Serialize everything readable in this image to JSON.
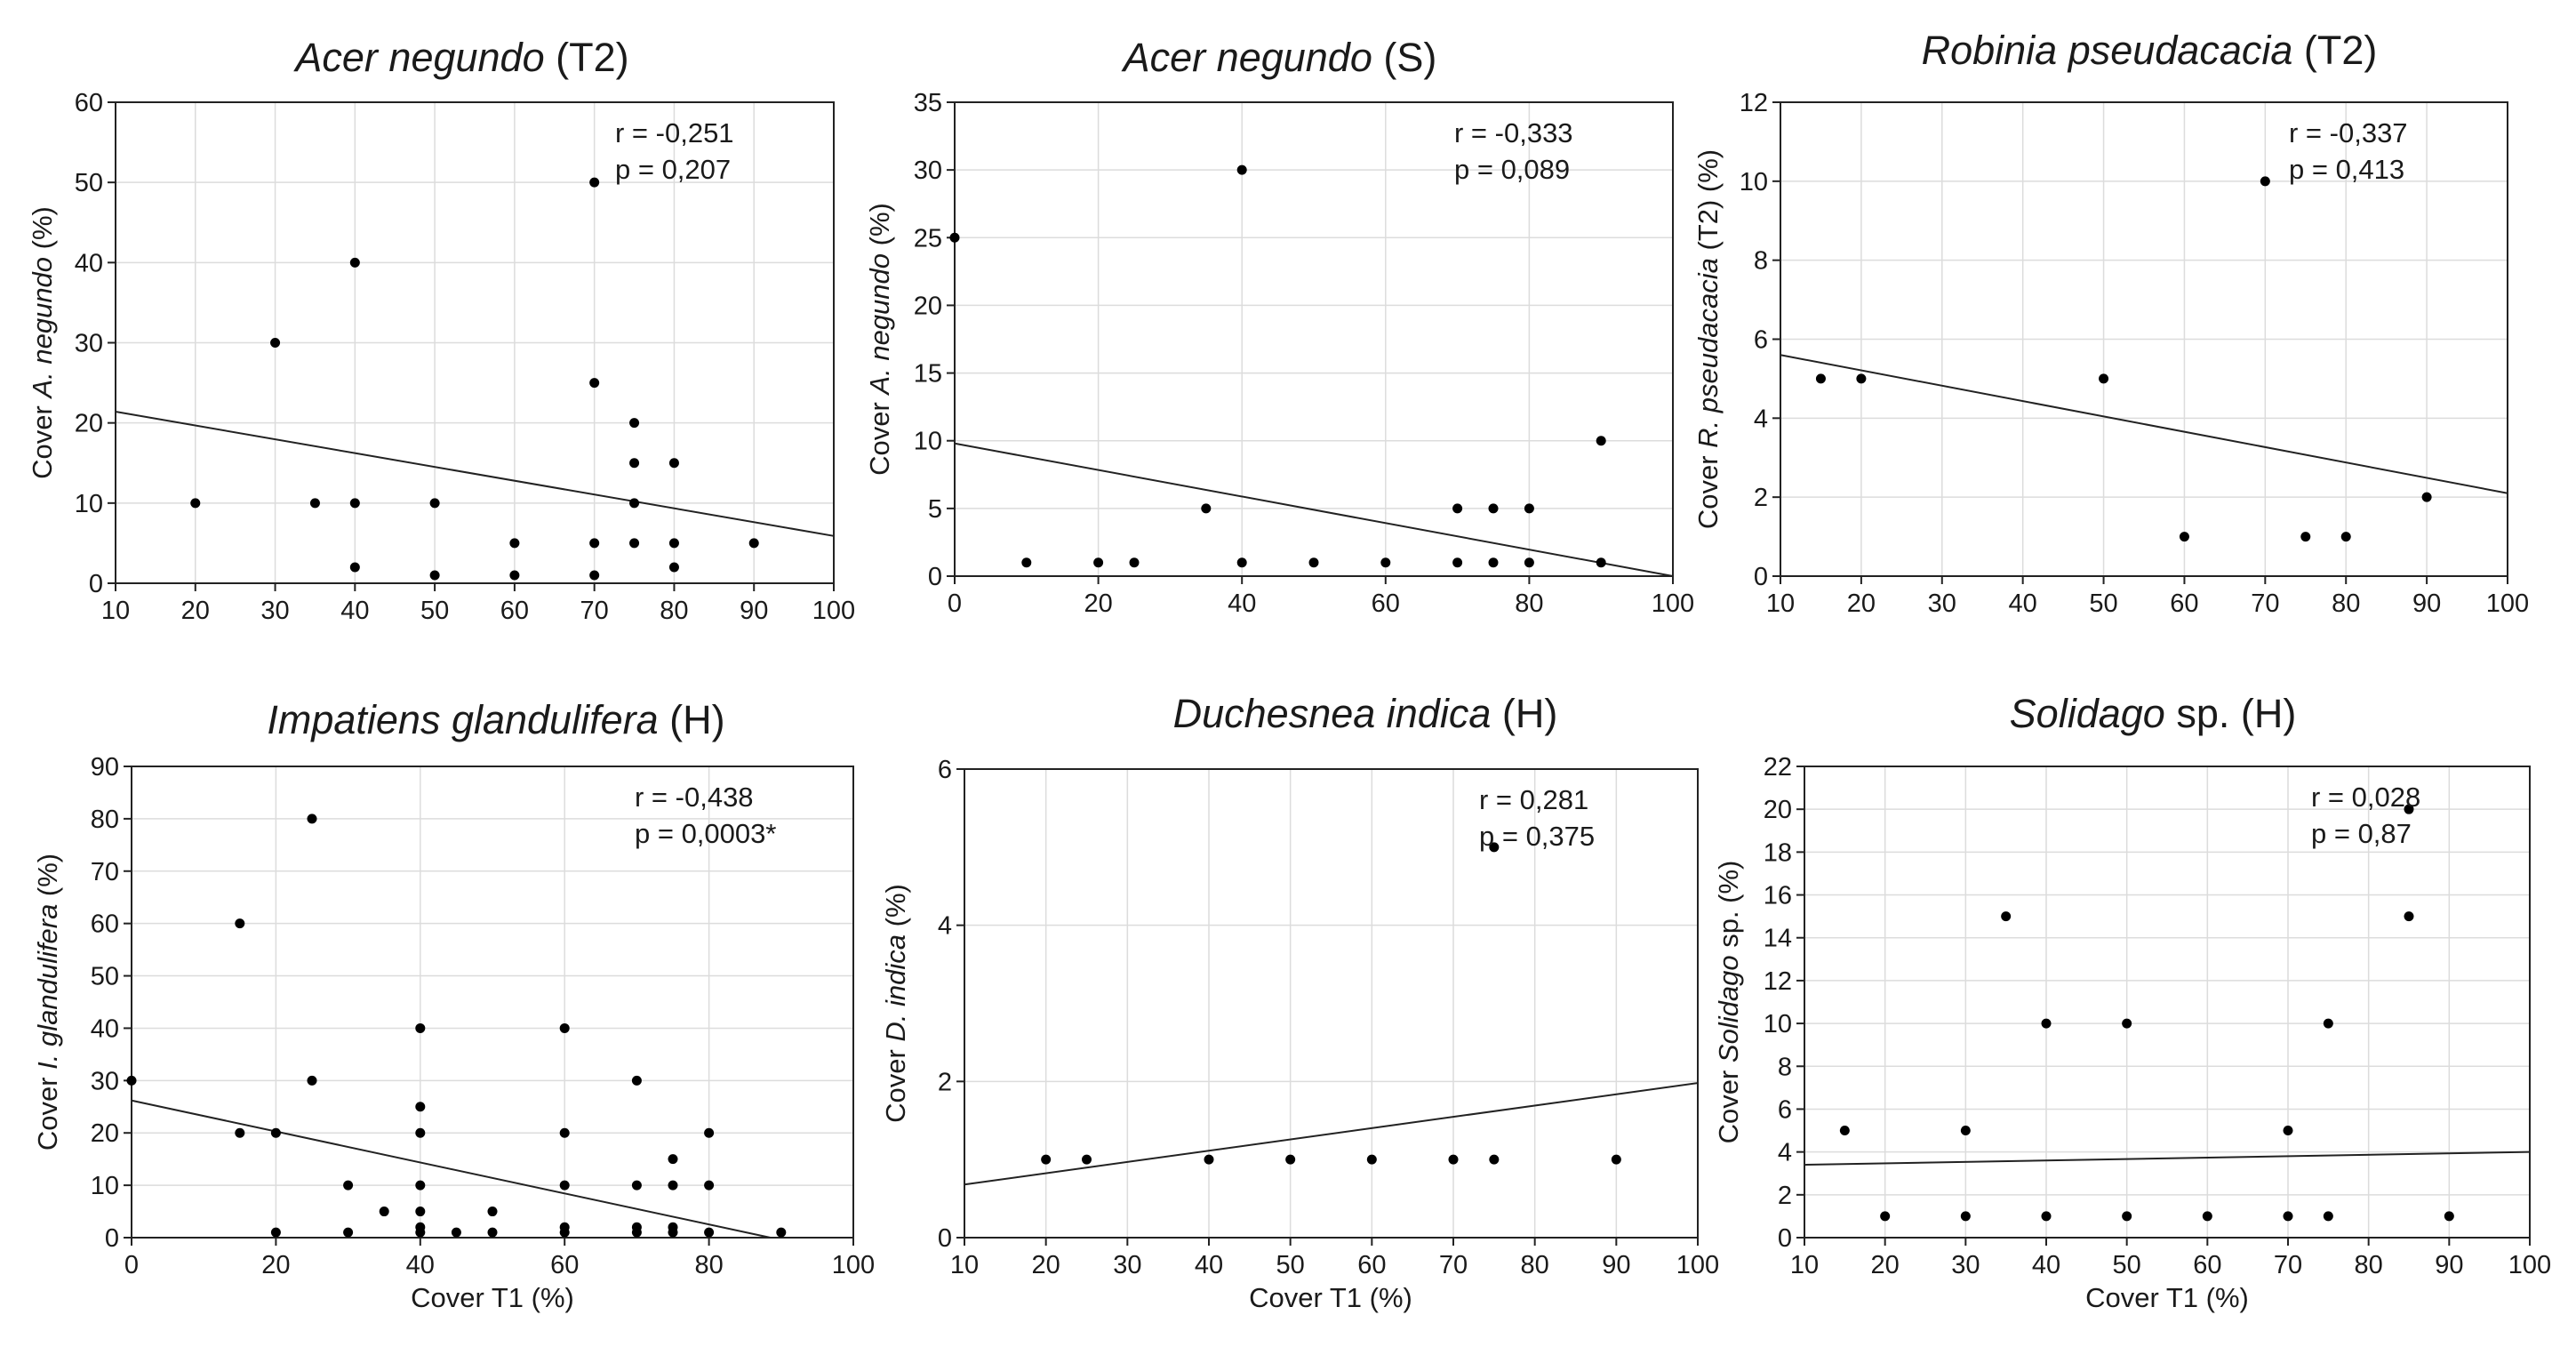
{
  "chart_data": [
    {
      "type": "scatter",
      "title_italic": "Acer negundo",
      "title_rest": " (T2)",
      "xlabel_pre": "",
      "xlabel_ital": "",
      "xlabel_post": "",
      "ylabel_pre": "Cover ",
      "ylabel_ital": "A. negundo",
      "ylabel_post": " (%)",
      "stat_r": "r = -0,251",
      "stat_p": "p = 0,207",
      "xlim": [
        10,
        100
      ],
      "ylim": [
        0,
        60
      ],
      "xticks": [
        10,
        20,
        30,
        40,
        50,
        60,
        70,
        80,
        90,
        100
      ],
      "yticks": [
        0,
        10,
        20,
        30,
        40,
        50,
        60
      ],
      "points": [
        [
          20,
          10
        ],
        [
          30,
          30
        ],
        [
          35,
          10
        ],
        [
          40,
          40
        ],
        [
          40,
          10
        ],
        [
          40,
          2
        ],
        [
          50,
          10
        ],
        [
          50,
          1
        ],
        [
          60,
          5
        ],
        [
          60,
          1
        ],
        [
          70,
          50
        ],
        [
          70,
          25
        ],
        [
          70,
          5
        ],
        [
          70,
          1
        ],
        [
          75,
          20
        ],
        [
          75,
          15
        ],
        [
          75,
          10
        ],
        [
          75,
          5
        ],
        [
          80,
          15
        ],
        [
          80,
          5
        ],
        [
          80,
          2
        ],
        [
          90,
          5
        ]
      ],
      "fit_line": [
        [
          10,
          21.4
        ],
        [
          100,
          5.9
        ]
      ]
    },
    {
      "type": "scatter",
      "title_italic": "Acer negundo",
      "title_rest": " (S)",
      "xlabel_pre": "",
      "xlabel_ital": "",
      "xlabel_post": "",
      "ylabel_pre": "Cover ",
      "ylabel_ital": "A. negundo",
      "ylabel_post": " (%)",
      "stat_r": "r = -0,333",
      "stat_p": "p = 0,089",
      "xlim": [
        0,
        100
      ],
      "ylim": [
        0,
        35
      ],
      "xticks": [
        0,
        20,
        40,
        60,
        80,
        100
      ],
      "yticks": [
        0,
        5,
        10,
        15,
        20,
        25,
        30,
        35
      ],
      "points": [
        [
          0,
          25
        ],
        [
          10,
          1
        ],
        [
          20,
          1
        ],
        [
          25,
          1
        ],
        [
          35,
          5
        ],
        [
          40,
          30
        ],
        [
          40,
          1
        ],
        [
          50,
          1
        ],
        [
          60,
          1
        ],
        [
          70,
          5
        ],
        [
          70,
          1
        ],
        [
          75,
          5
        ],
        [
          75,
          1
        ],
        [
          80,
          5
        ],
        [
          80,
          1
        ],
        [
          90,
          10
        ],
        [
          90,
          1
        ]
      ],
      "fit_line": [
        [
          0,
          9.8
        ],
        [
          100,
          0
        ]
      ]
    },
    {
      "type": "scatter",
      "title_italic": "Robinia pseudacacia",
      "title_rest": " (T2)",
      "xlabel_pre": "",
      "xlabel_ital": "",
      "xlabel_post": "",
      "ylabel_pre": "Cover ",
      "ylabel_ital": "R. pseudacacia",
      "ylabel_post": " (T2) (%)",
      "stat_r": "r = -0,337",
      "stat_p": "p = 0,413",
      "xlim": [
        10,
        100
      ],
      "ylim": [
        0,
        12
      ],
      "xticks": [
        10,
        20,
        30,
        40,
        50,
        60,
        70,
        80,
        90,
        100
      ],
      "yticks": [
        0,
        2,
        4,
        6,
        8,
        10,
        12
      ],
      "points": [
        [
          15,
          5
        ],
        [
          20,
          5
        ],
        [
          50,
          5
        ],
        [
          60,
          1
        ],
        [
          70,
          10
        ],
        [
          75,
          1
        ],
        [
          80,
          1
        ],
        [
          90,
          2
        ]
      ],
      "fit_line": [
        [
          10,
          5.6
        ],
        [
          100,
          2.1
        ]
      ]
    },
    {
      "type": "scatter",
      "title_italic": "Impatiens glandulifera",
      "title_rest": " (H)",
      "xlabel_pre": "Cover T1 (%)",
      "xlabel_ital": "",
      "xlabel_post": "",
      "ylabel_pre": "Cover ",
      "ylabel_ital": "I. glandulifera",
      "ylabel_post": " (%)",
      "stat_r": "r = -0,438",
      "stat_p": "p = 0,0003*",
      "xlim": [
        0,
        100
      ],
      "ylim": [
        0,
        90
      ],
      "xticks": [
        0,
        20,
        40,
        60,
        80,
        100
      ],
      "yticks": [
        0,
        10,
        20,
        30,
        40,
        50,
        60,
        70,
        80,
        90
      ],
      "points": [
        [
          0,
          30
        ],
        [
          15,
          60
        ],
        [
          15,
          20
        ],
        [
          20,
          20
        ],
        [
          20,
          1
        ],
        [
          25,
          80
        ],
        [
          25,
          30
        ],
        [
          30,
          10
        ],
        [
          30,
          1
        ],
        [
          35,
          5
        ],
        [
          40,
          40
        ],
        [
          40,
          25
        ],
        [
          40,
          20
        ],
        [
          40,
          10
        ],
        [
          40,
          5
        ],
        [
          40,
          2
        ],
        [
          40,
          1
        ],
        [
          45,
          1
        ],
        [
          50,
          5
        ],
        [
          50,
          1
        ],
        [
          60,
          40
        ],
        [
          60,
          20
        ],
        [
          60,
          10
        ],
        [
          60,
          2
        ],
        [
          60,
          1
        ],
        [
          70,
          30
        ],
        [
          70,
          10
        ],
        [
          70,
          2
        ],
        [
          70,
          1
        ],
        [
          75,
          15
        ],
        [
          75,
          10
        ],
        [
          75,
          2
        ],
        [
          75,
          1
        ],
        [
          80,
          20
        ],
        [
          80,
          10
        ],
        [
          80,
          1
        ],
        [
          90,
          1
        ]
      ],
      "fit_line": [
        [
          0,
          26.2
        ],
        [
          88.5,
          0
        ]
      ]
    },
    {
      "type": "scatter",
      "title_italic": "Duchesnea indica",
      "title_rest": " (H)",
      "xlabel_pre": "Cover T1 (%)",
      "xlabel_ital": "",
      "xlabel_post": "",
      "ylabel_pre": "Cover ",
      "ylabel_ital": "D. indica",
      "ylabel_post": " (%)",
      "stat_r": "r = 0,281",
      "stat_p": "p = 0,375",
      "xlim": [
        10,
        100
      ],
      "ylim": [
        0,
        6
      ],
      "xticks": [
        10,
        20,
        30,
        40,
        50,
        60,
        70,
        80,
        90,
        100
      ],
      "yticks": [
        0,
        2,
        4,
        6
      ],
      "points": [
        [
          20,
          1
        ],
        [
          25,
          1
        ],
        [
          40,
          1
        ],
        [
          50,
          1
        ],
        [
          60,
          1
        ],
        [
          70,
          1
        ],
        [
          75,
          5
        ],
        [
          75,
          1
        ],
        [
          90,
          1
        ]
      ],
      "fit_line": [
        [
          10,
          0.68
        ],
        [
          100,
          1.98
        ]
      ]
    },
    {
      "type": "scatter",
      "title_italic": "Solidago",
      "title_rest": " sp. (H)",
      "xlabel_pre": "Cover T1 (%)",
      "xlabel_ital": "",
      "xlabel_post": "",
      "ylabel_pre": "Cover ",
      "ylabel_ital": "Solidago",
      "ylabel_post": " sp. (%)",
      "stat_r": "r  = 0,028",
      "stat_p": "p = 0,87",
      "xlim": [
        10,
        100
      ],
      "ylim": [
        0,
        22
      ],
      "xticks": [
        10,
        20,
        30,
        40,
        50,
        60,
        70,
        80,
        90,
        100
      ],
      "yticks": [
        0,
        2,
        4,
        6,
        8,
        10,
        12,
        14,
        16,
        18,
        20,
        22
      ],
      "points": [
        [
          15,
          5
        ],
        [
          20,
          1
        ],
        [
          30,
          5
        ],
        [
          30,
          1
        ],
        [
          35,
          15
        ],
        [
          40,
          10
        ],
        [
          40,
          1
        ],
        [
          50,
          10
        ],
        [
          50,
          1
        ],
        [
          60,
          1
        ],
        [
          70,
          5
        ],
        [
          70,
          1
        ],
        [
          75,
          10
        ],
        [
          75,
          1
        ],
        [
          85,
          20
        ],
        [
          85,
          15
        ],
        [
          90,
          1
        ]
      ],
      "fit_line": [
        [
          10,
          3.4
        ],
        [
          100,
          4.0
        ]
      ]
    }
  ]
}
